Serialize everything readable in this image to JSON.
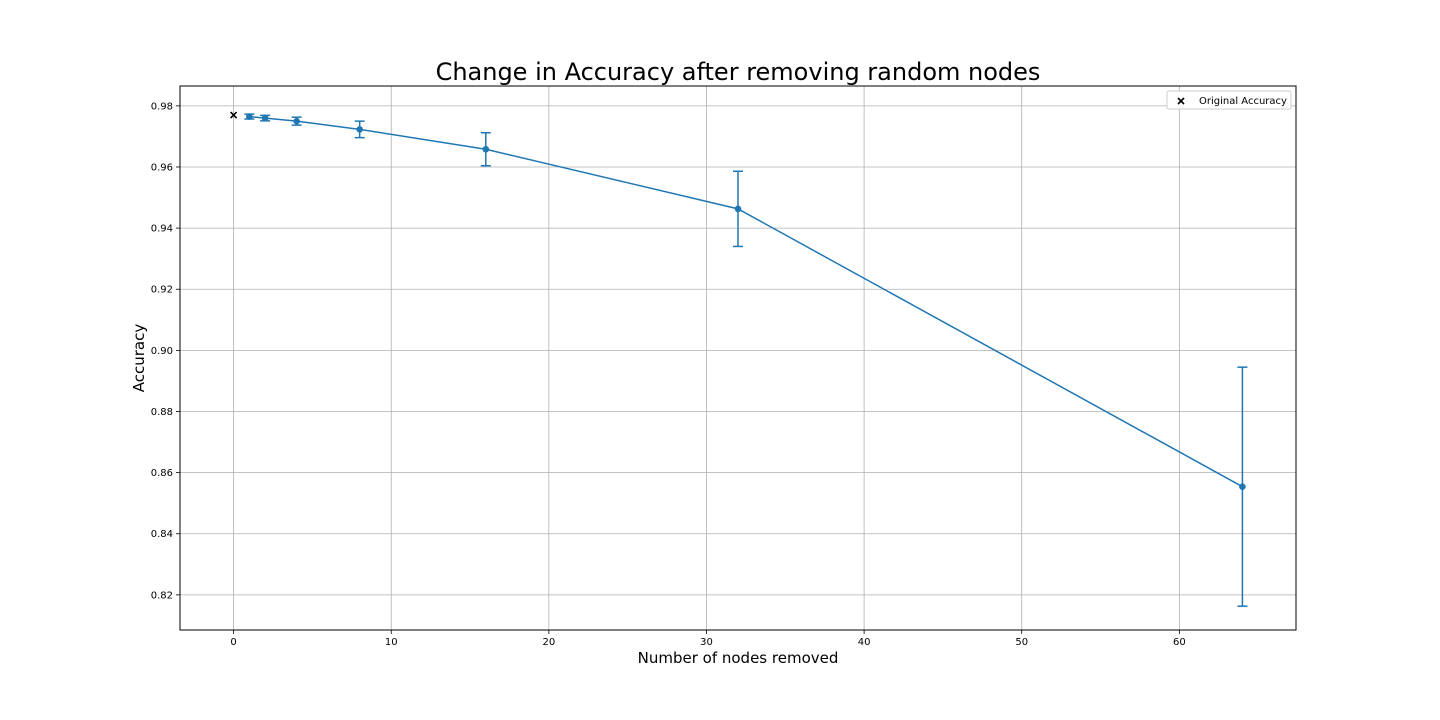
{
  "chart_data": {
    "type": "line",
    "title": "Change in Accuracy after removing random nodes",
    "xlabel": "Number of nodes removed",
    "ylabel": "Accuracy",
    "xlim": [
      -3.4,
      67.4
    ],
    "ylim": [
      0.8085,
      0.9865
    ],
    "xticks": [
      0,
      10,
      20,
      30,
      40,
      50,
      60
    ],
    "yticks": [
      0.82,
      0.84,
      0.86,
      0.88,
      0.9,
      0.92,
      0.94,
      0.96,
      0.98
    ],
    "ytick_labels": [
      "0.82",
      "0.84",
      "0.86",
      "0.88",
      "0.90",
      "0.92",
      "0.94",
      "0.96",
      "0.98"
    ],
    "grid": true,
    "legend_position": "top-right",
    "series": [
      {
        "kind": "errorbar-line",
        "color": "#1f77b4",
        "x": [
          1,
          2,
          4,
          8,
          16,
          32,
          64
        ],
        "y": [
          0.9765,
          0.976,
          0.975,
          0.9723,
          0.9658,
          0.9463,
          0.8554
        ],
        "yerr": [
          0.0008,
          0.0009,
          0.0013,
          0.0027,
          0.0054,
          0.0123,
          0.0391
        ]
      },
      {
        "name": "Original Accuracy",
        "kind": "scatter",
        "marker": "x",
        "color": "#000000",
        "x": [
          0
        ],
        "y": [
          0.977
        ]
      }
    ]
  }
}
